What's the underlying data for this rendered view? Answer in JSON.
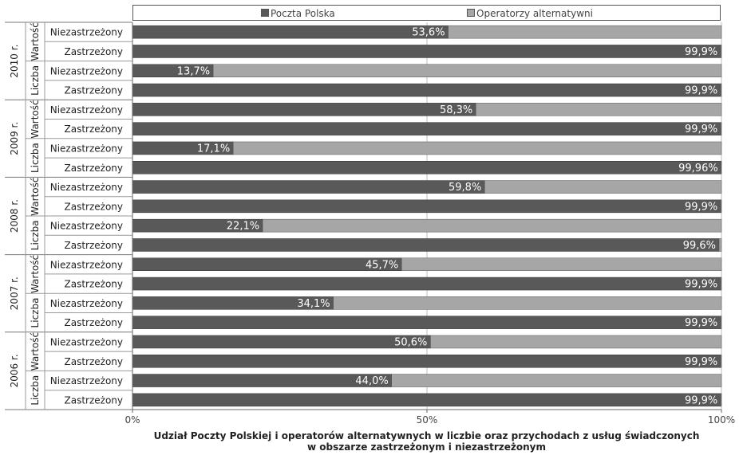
{
  "chart_data": {
    "type": "bar",
    "orientation": "horizontal",
    "stacked": "100%",
    "legend": {
      "position": "top",
      "entries": [
        {
          "label": "Poczta Polska",
          "color": "#595959"
        },
        {
          "label": "Operatorzy alternatywni",
          "color": "#a6a6a6"
        }
      ]
    },
    "xlim": [
      0,
      100
    ],
    "xticks": [
      "0%",
      "50%",
      "100%"
    ],
    "grid": true,
    "xlabel_lines": [
      "Udział Poczty Polskiej i operatorów alternatywnych w liczbie oraz przychodach z usług świadczonych",
      "w obszarze zastrzeżonym i niezastrzeżonym"
    ],
    "groups": [
      {
        "year": "2010 r.",
        "subgroups": [
          {
            "label": "Wartość",
            "rows": [
              {
                "label": "Niezastrzeżony",
                "value": 53.6,
                "value_label": "53,6%"
              },
              {
                "label": "Zastrzeżony",
                "value": 99.9,
                "value_label": "99,9%"
              }
            ]
          },
          {
            "label": "Liczba",
            "rows": [
              {
                "label": "Niezastrzeżony",
                "value": 13.7,
                "value_label": "13,7%"
              },
              {
                "label": "Zastrzeżony",
                "value": 99.9,
                "value_label": "99,9%"
              }
            ]
          }
        ]
      },
      {
        "year": "2009 r.",
        "subgroups": [
          {
            "label": "Wartość",
            "rows": [
              {
                "label": "Niezastrzeżony",
                "value": 58.3,
                "value_label": "58,3%"
              },
              {
                "label": "Zastrzeżony",
                "value": 99.9,
                "value_label": "99,9%"
              }
            ]
          },
          {
            "label": "Liczba",
            "rows": [
              {
                "label": "Niezastrzeżony",
                "value": 17.1,
                "value_label": "17,1%"
              },
              {
                "label": "Zastrzeżony",
                "value": 99.96,
                "value_label": "99,96%"
              }
            ]
          }
        ]
      },
      {
        "year": "2008 r.",
        "subgroups": [
          {
            "label": "Wartość",
            "rows": [
              {
                "label": "Niezastrzeżony",
                "value": 59.8,
                "value_label": "59,8%"
              },
              {
                "label": "Zastrzeżony",
                "value": 99.9,
                "value_label": "99,9%"
              }
            ]
          },
          {
            "label": "Liczba",
            "rows": [
              {
                "label": "Niezastrzeżony",
                "value": 22.1,
                "value_label": "22,1%"
              },
              {
                "label": "Zastrzeżony",
                "value": 99.6,
                "value_label": "99,6%"
              }
            ]
          }
        ]
      },
      {
        "year": "2007 r.",
        "subgroups": [
          {
            "label": "Wartość",
            "rows": [
              {
                "label": "Niezastrzeżony",
                "value": 45.7,
                "value_label": "45,7%"
              },
              {
                "label": "Zastrzeżony",
                "value": 99.9,
                "value_label": "99,9%"
              }
            ]
          },
          {
            "label": "Liczba",
            "rows": [
              {
                "label": "Niezastrzeżony",
                "value": 34.1,
                "value_label": "34,1%"
              },
              {
                "label": "Zastrzeżony",
                "value": 99.9,
                "value_label": "99,9%"
              }
            ]
          }
        ]
      },
      {
        "year": "2006 r.",
        "subgroups": [
          {
            "label": "Wartość",
            "rows": [
              {
                "label": "Niezastrzeżony",
                "value": 50.6,
                "value_label": "50,6%"
              },
              {
                "label": "Zastrzeżony",
                "value": 99.9,
                "value_label": "99,9%"
              }
            ]
          },
          {
            "label": "Liczba",
            "rows": [
              {
                "label": "Niezastrzeżony",
                "value": 44.0,
                "value_label": "44,0%"
              },
              {
                "label": "Zastrzeżony",
                "value": 99.9,
                "value_label": "99,9%"
              }
            ]
          }
        ]
      }
    ]
  }
}
